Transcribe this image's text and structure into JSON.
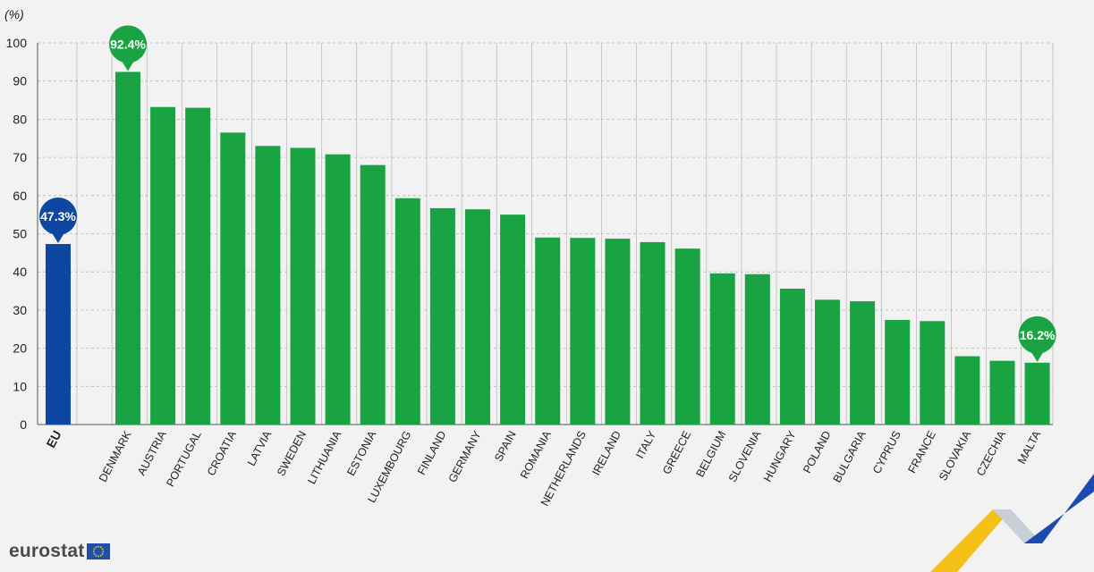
{
  "chart_data": {
    "type": "bar",
    "unit_label": "(%)",
    "categories": [
      "EU",
      "DENMARK",
      "AUSTRIA",
      "PORTUGAL",
      "CROATIA",
      "LATVIA",
      "SWEDEN",
      "LITHUANIA",
      "ESTONIA",
      "LUXEMBOURG",
      "FINLAND",
      "GERMANY",
      "SPAIN",
      "ROMANIA",
      "NETHERLANDS",
      "IRELAND",
      "ITALY",
      "GREECE",
      "BELGIUM",
      "SLOVENIA",
      "HUNGARY",
      "POLAND",
      "BULGARIA",
      "CYPRUS",
      "FRANCE",
      "SLOVAKIA",
      "CZECHIA",
      "MALTA"
    ],
    "values": [
      47.3,
      92.4,
      83.2,
      83.0,
      76.5,
      73.0,
      72.5,
      70.8,
      68.0,
      59.3,
      56.7,
      56.4,
      55.0,
      49.0,
      48.9,
      48.7,
      47.8,
      46.1,
      39.6,
      39.4,
      35.6,
      32.7,
      32.3,
      27.4,
      27.1,
      17.9,
      16.7,
      16.2
    ],
    "ylim": [
      0,
      100
    ],
    "yticks": [
      0,
      10,
      20,
      30,
      40,
      50,
      60,
      70,
      80,
      90,
      100
    ],
    "grid": true,
    "colors": {
      "eu": "#0e47a1",
      "country": "#1aa342",
      "grid": "#b5b5b5"
    },
    "callouts": [
      {
        "category": "EU",
        "label": "47.3%",
        "color": "#0e47a1"
      },
      {
        "category": "DENMARK",
        "label": "92.4%",
        "color": "#1aa342"
      },
      {
        "category": "MALTA",
        "label": "16.2%",
        "color": "#1aa342"
      }
    ]
  },
  "footer": {
    "logo_text": "eurostat"
  }
}
